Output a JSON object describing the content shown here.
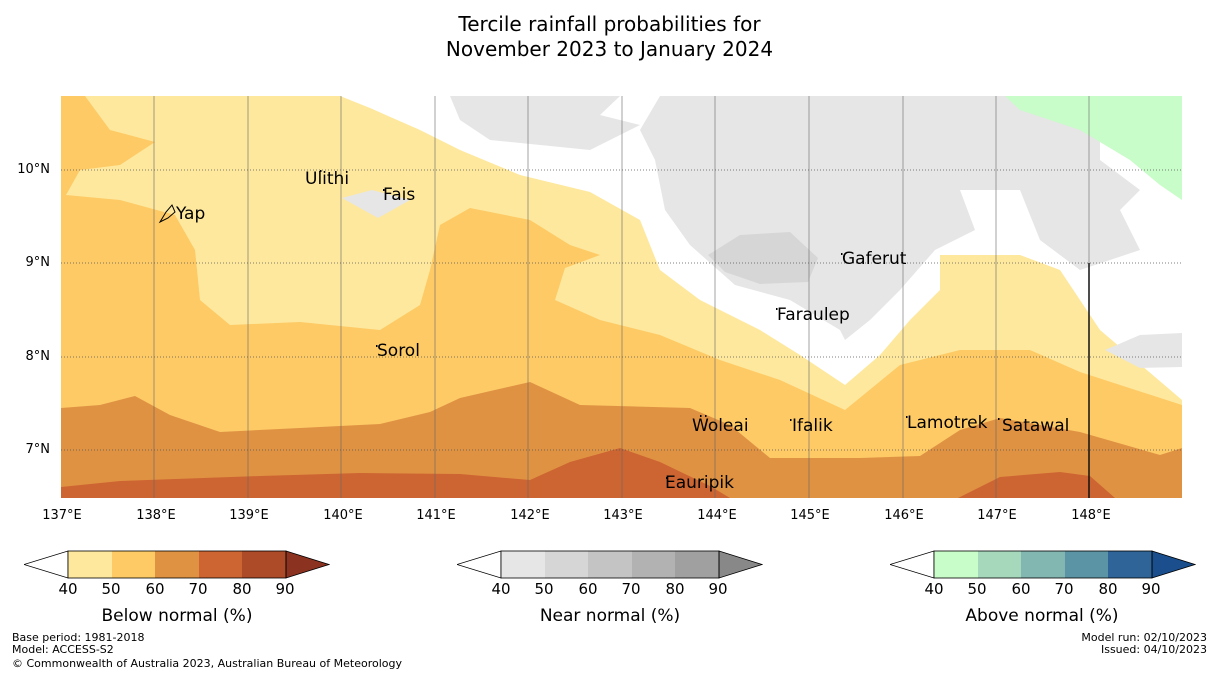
{
  "title": {
    "line1": "Tercile rainfall probabilities for",
    "line2": "November 2023 to January 2024"
  },
  "map": {
    "lat_labels": [
      "10°N",
      "9°N",
      "8°N",
      "7°N"
    ],
    "lon_labels": [
      "137°E",
      "138°E",
      "139°E",
      "140°E",
      "141°E",
      "142°E",
      "143°E",
      "144°E",
      "145°E",
      "146°E",
      "147°E",
      "148°E"
    ],
    "places": [
      "Ulithi",
      "Fais",
      "Yap",
      "Gaferut",
      "Faraulep",
      "Sorol",
      "Woleai",
      "Ifalik",
      "Lamotrek",
      "Satawal",
      "Eauripik"
    ],
    "colors": {
      "below_40_50": "#fee89d",
      "below_50_60": "#fdca66",
      "below_60_70": "#e09243",
      "below_70_80": "#cd6532",
      "near_40_50": "#e6e6e6",
      "near_50_60": "#d6d6d6",
      "above_40_50": "#c8fcc8"
    }
  },
  "colorbars": {
    "ticks": [
      "40",
      "50",
      "60",
      "70",
      "80",
      "90"
    ],
    "below": {
      "label": "Below normal (%)",
      "colors": [
        "#fee89d",
        "#fdca66",
        "#e09243",
        "#cd6532",
        "#ad4a27",
        "#8c3220"
      ]
    },
    "near": {
      "label": "Near normal (%)",
      "colors": [
        "#e6e6e6",
        "#d6d6d6",
        "#c4c4c4",
        "#b2b2b2",
        "#a0a0a0",
        "#888888"
      ]
    },
    "above": {
      "label": "Above normal (%)",
      "colors": [
        "#c8fcc8",
        "#a6d8bc",
        "#82b6b0",
        "#5b94a4",
        "#2f6498",
        "#1a4e8c"
      ]
    }
  },
  "footer": {
    "base_period": "Base period: 1981-2018",
    "model": "Model: ACCESS-S2",
    "copyright": "© Commonwealth of Australia 2023, Australian Bureau of Meteorology",
    "model_run": "Model run: 02/10/2023",
    "issued": "Issued: 04/10/2023"
  }
}
